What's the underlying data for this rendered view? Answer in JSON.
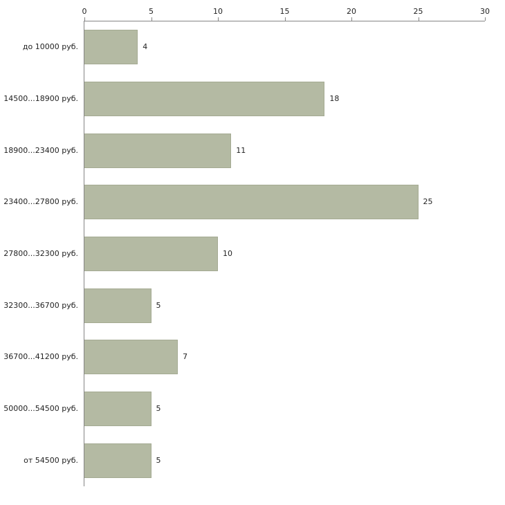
{
  "chart_data": {
    "type": "bar",
    "orientation": "horizontal",
    "title": "",
    "xlabel": "",
    "ylabel": "",
    "categories": [
      "до 10000 руб.",
      "14500...18900 руб.",
      "18900...23400 руб.",
      "23400...27800 руб.",
      "27800...32300 руб.",
      "32300...36700 руб.",
      "36700...41200 руб.",
      "50000...54500 руб.",
      "от 54500 руб."
    ],
    "values": [
      4,
      18,
      11,
      25,
      10,
      5,
      7,
      5,
      5
    ],
    "xlim": [
      0,
      30
    ],
    "x_ticks": [
      0,
      5,
      10,
      15,
      20,
      25,
      30
    ],
    "grid": false,
    "legend": false,
    "axis_position": "top-left",
    "bar_color": "#b4baa3",
    "bar_border_color": "#a4aa92",
    "axis_color": "#848484",
    "text_color": "#222222",
    "background_color": "#ffffff"
  }
}
